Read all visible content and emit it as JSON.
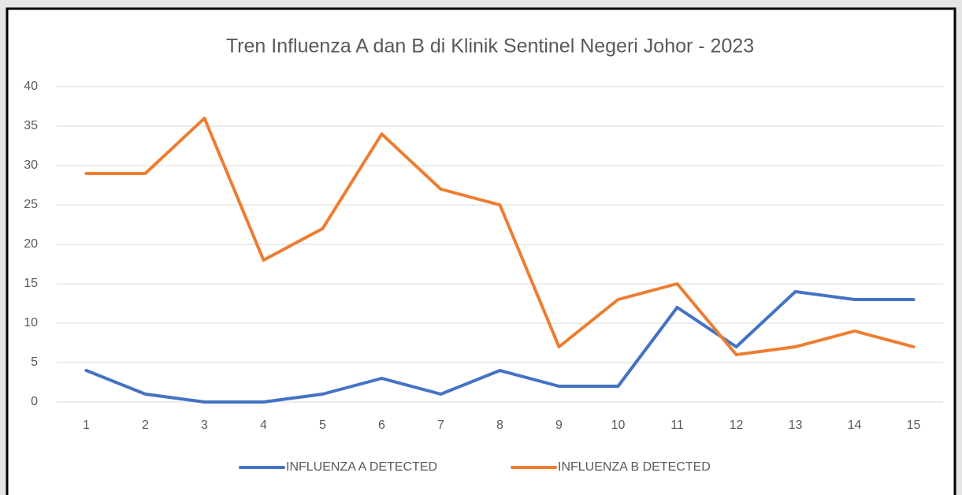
{
  "chart_data": {
    "type": "line",
    "title": "Tren Influenza A dan B di Klinik Sentinel Negeri Johor - 2023",
    "categories": [
      "1",
      "2",
      "3",
      "4",
      "5",
      "6",
      "7",
      "8",
      "9",
      "10",
      "11",
      "12",
      "13",
      "14",
      "15"
    ],
    "series": [
      {
        "name": "INFLUENZA A DETECTED",
        "color": "#4472c4",
        "values": [
          4,
          1,
          0,
          0,
          1,
          3,
          1,
          4,
          2,
          2,
          12,
          7,
          14,
          13,
          13
        ]
      },
      {
        "name": "INFLUENZA B DETECTED",
        "color": "#ed7d31",
        "values": [
          29,
          29,
          36,
          18,
          22,
          34,
          27,
          25,
          7,
          13,
          15,
          6,
          7,
          9,
          7
        ]
      }
    ],
    "ylim": [
      0,
      40
    ],
    "yticks": [
      0,
      5,
      10,
      15,
      20,
      25,
      30,
      35,
      40
    ],
    "grid": true,
    "legend": "bottom"
  }
}
